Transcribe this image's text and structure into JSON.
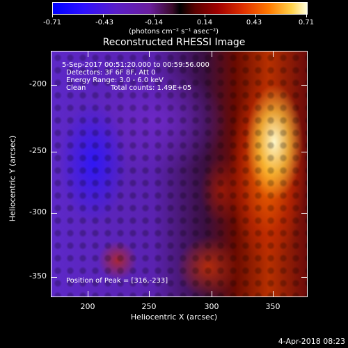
{
  "colorbar": {
    "ticks": [
      "-0.71",
      "-0.43",
      "-0.14",
      "0.14",
      "0.43",
      "0.71"
    ],
    "units": "(photons cm⁻² s⁻¹ asec⁻²)"
  },
  "title": "Reconstructed RHESSI Image",
  "overlay": {
    "time_range": "5-Sep-2017 00:51:20.000 to 00:59:56.000",
    "detectors": "Detectors: 3F 6F 8F, Att 0",
    "energy_range": "Energy Range: 3.0 - 6.0 keV",
    "method": "Clean",
    "total_counts": "Total counts: 1.49E+05",
    "peak_position": "Position of Peak = [316,-233]"
  },
  "axes": {
    "xlabel": "Heliocentric X (arcsec)",
    "ylabel": "Heliocentric Y (arcsec)",
    "xticks": [
      "200",
      "250",
      "300",
      "350"
    ],
    "yticks": [
      "-200",
      "-250",
      "-300",
      "-350"
    ]
  },
  "timestamp": "4-Apr-2018 08:23"
}
